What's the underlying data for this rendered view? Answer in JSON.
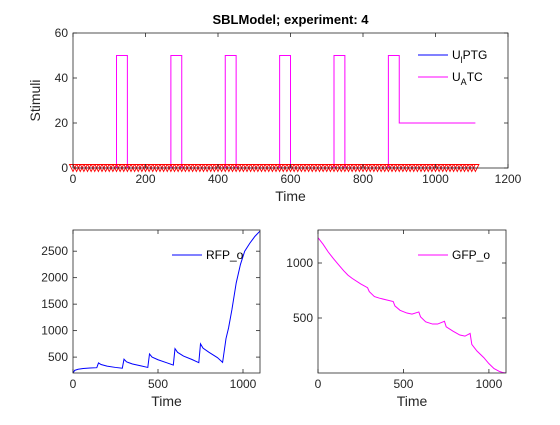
{
  "chart_data": [
    {
      "type": "line",
      "title": "SBLModel; experiment: 4",
      "xlabel": "Time",
      "ylabel": "Stimuli",
      "xlim": [
        0,
        1200
      ],
      "ylim": [
        0,
        60
      ],
      "xticks": [
        0,
        200,
        400,
        600,
        800,
        1000,
        1200
      ],
      "yticks": [
        0,
        20,
        40,
        60
      ],
      "grid": false,
      "legend_position": "top-right",
      "legend": [
        {
          "main": "U",
          "sub": "l",
          "rest": "PTG",
          "color": "#0000ff"
        },
        {
          "main": "U",
          "sub": "A",
          "rest": "TC",
          "color": "#ff00ff"
        }
      ],
      "series": [
        {
          "color": "#0000ff",
          "x": [
            0,
            1110
          ],
          "y": [
            0,
            0
          ]
        },
        {
          "color": "#ff00ff",
          "x": [
            0,
            120,
            120,
            150,
            150,
            270,
            270,
            300,
            300,
            420,
            420,
            450,
            450,
            570,
            570,
            600,
            600,
            720,
            720,
            750,
            750,
            870,
            870,
            900,
            900,
            1110
          ],
          "y": [
            0,
            0,
            50,
            50,
            0,
            0,
            50,
            50,
            0,
            0,
            50,
            50,
            0,
            0,
            50,
            50,
            0,
            0,
            50,
            50,
            0,
            0,
            50,
            50,
            20,
            20
          ]
        }
      ],
      "markers": {
        "shape": "triangle-down",
        "color": "#ff0000",
        "y": 0,
        "x_start": 0,
        "x_end": 1110,
        "x_step": 10
      }
    },
    {
      "type": "line",
      "xlabel": "Time",
      "xlim": [
        0,
        1100
      ],
      "ylim": [
        200,
        2900
      ],
      "xticks": [
        0,
        500,
        1000
      ],
      "yticks": [
        500,
        1000,
        1500,
        2000,
        2500
      ],
      "grid": false,
      "legend_position": "top-right",
      "series": [
        {
          "name": "RFP_o",
          "color": "#0000ff",
          "x": [
            0,
            10,
            30,
            60,
            100,
            140,
            150,
            165,
            200,
            250,
            290,
            300,
            315,
            350,
            400,
            440,
            450,
            465,
            500,
            550,
            590,
            600,
            615,
            650,
            700,
            740,
            750,
            765,
            800,
            850,
            880,
            900,
            915,
            935,
            960,
            985,
            1010,
            1040,
            1070,
            1100
          ],
          "y": [
            200,
            250,
            270,
            285,
            295,
            300,
            390,
            360,
            330,
            305,
            290,
            460,
            410,
            370,
            335,
            305,
            560,
            500,
            450,
            395,
            350,
            660,
            590,
            520,
            455,
            395,
            750,
            670,
            590,
            490,
            400,
            850,
            1050,
            1400,
            1900,
            2250,
            2500,
            2650,
            2780,
            2880
          ]
        }
      ]
    },
    {
      "type": "line",
      "xlabel": "Time",
      "xlim": [
        0,
        1100
      ],
      "ylim": [
        0,
        1300
      ],
      "xticks": [
        0,
        500,
        1000
      ],
      "yticks": [
        500,
        1000
      ],
      "grid": false,
      "legend_position": "top-right",
      "series": [
        {
          "name": "GFP_o",
          "color": "#ff00ff",
          "x": [
            0,
            30,
            60,
            90,
            120,
            150,
            175,
            200,
            250,
            290,
            300,
            330,
            360,
            400,
            440,
            450,
            480,
            520,
            550,
            590,
            600,
            630,
            670,
            700,
            740,
            750,
            790,
            830,
            860,
            890,
            900,
            930,
            970,
            1000,
            1030,
            1060,
            1080,
            1100
          ],
          "y": [
            1230,
            1170,
            1100,
            1040,
            985,
            930,
            890,
            860,
            810,
            775,
            740,
            695,
            680,
            665,
            650,
            610,
            570,
            545,
            535,
            555,
            510,
            465,
            445,
            445,
            470,
            420,
            380,
            345,
            335,
            360,
            260,
            200,
            140,
            85,
            40,
            15,
            5,
            0
          ]
        }
      ]
    }
  ]
}
